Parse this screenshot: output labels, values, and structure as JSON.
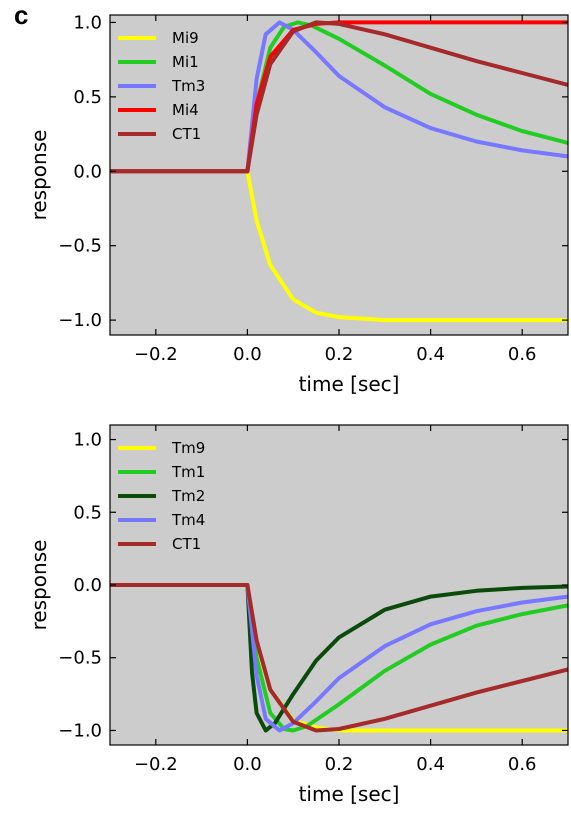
{
  "panel_label": "c",
  "chart_data": [
    {
      "type": "line",
      "title": "",
      "xlabel": "time [sec]",
      "ylabel": "response",
      "xlim": [
        -0.3,
        0.7
      ],
      "ylim": [
        -1.1,
        1.05
      ],
      "xticks": [
        -0.2,
        0.0,
        0.2,
        0.4,
        0.6
      ],
      "xtick_labels": [
        "−0.2",
        "0.0",
        "0.2",
        "0.4",
        "0.6"
      ],
      "yticks": [
        -1.0,
        -0.5,
        0.0,
        0.5,
        1.0
      ],
      "ytick_labels": [
        "−1.0",
        "−0.5",
        "0.0",
        "0.5",
        "1.0"
      ],
      "grid": false,
      "legend_position": "top-left",
      "series": [
        {
          "name": "Mi9",
          "color": "#ffff00",
          "x": [
            -0.3,
            0.0,
            0.02,
            0.05,
            0.1,
            0.15,
            0.2,
            0.3,
            0.4,
            0.5,
            0.6,
            0.7
          ],
          "y": [
            0.0,
            0.0,
            -0.33,
            -0.63,
            -0.86,
            -0.95,
            -0.98,
            -1.0,
            -1.0,
            -1.0,
            -1.0,
            -1.0
          ]
        },
        {
          "name": "Mi1",
          "color": "#22cc22",
          "x": [
            -0.3,
            0.0,
            0.02,
            0.05,
            0.08,
            0.11,
            0.14,
            0.2,
            0.3,
            0.4,
            0.5,
            0.6,
            0.7
          ],
          "y": [
            0.0,
            0.0,
            0.45,
            0.83,
            0.97,
            1.0,
            0.98,
            0.89,
            0.71,
            0.52,
            0.38,
            0.27,
            0.19
          ]
        },
        {
          "name": "Tm3",
          "color": "#7777ff",
          "x": [
            -0.3,
            0.0,
            0.02,
            0.04,
            0.07,
            0.1,
            0.15,
            0.2,
            0.3,
            0.4,
            0.5,
            0.6,
            0.7
          ],
          "y": [
            0.0,
            0.0,
            0.62,
            0.92,
            1.0,
            0.95,
            0.8,
            0.64,
            0.43,
            0.29,
            0.2,
            0.14,
            0.1
          ]
        },
        {
          "name": "Mi4",
          "color": "#ff0000",
          "x": [
            -0.3,
            0.0,
            0.02,
            0.05,
            0.1,
            0.15,
            0.2,
            0.3,
            0.4,
            0.5,
            0.6,
            0.7
          ],
          "y": [
            0.0,
            0.0,
            0.45,
            0.77,
            0.95,
            0.99,
            1.0,
            1.0,
            1.0,
            1.0,
            1.0,
            1.0
          ]
        },
        {
          "name": "CT1",
          "color": "#a52a2a",
          "x": [
            -0.3,
            0.0,
            0.02,
            0.05,
            0.1,
            0.15,
            0.2,
            0.3,
            0.4,
            0.5,
            0.6,
            0.7
          ],
          "y": [
            0.0,
            0.0,
            0.38,
            0.72,
            0.94,
            1.0,
            0.99,
            0.92,
            0.83,
            0.74,
            0.66,
            0.58
          ]
        }
      ]
    },
    {
      "type": "line",
      "title": "",
      "xlabel": "time [sec]",
      "ylabel": "response",
      "xlim": [
        -0.3,
        0.7
      ],
      "ylim": [
        -1.1,
        1.1
      ],
      "xticks": [
        -0.2,
        0.0,
        0.2,
        0.4,
        0.6
      ],
      "xtick_labels": [
        "−0.2",
        "0.0",
        "0.2",
        "0.4",
        "0.6"
      ],
      "yticks": [
        -1.0,
        -0.5,
        0.0,
        0.5,
        1.0
      ],
      "ytick_labels": [
        "−1.0",
        "−0.5",
        "0.0",
        "0.5",
        "1.0"
      ],
      "grid": false,
      "legend_position": "top-left",
      "series": [
        {
          "name": "Tm9",
          "color": "#ffff00",
          "x": [
            -0.3,
            0.0,
            0.02,
            0.05,
            0.1,
            0.15,
            0.2,
            0.3,
            0.4,
            0.5,
            0.6,
            0.7
          ],
          "y": [
            0.0,
            0.0,
            -0.4,
            -0.72,
            -0.93,
            -0.98,
            -1.0,
            -1.0,
            -1.0,
            -1.0,
            -1.0,
            -1.0
          ]
        },
        {
          "name": "Tm1",
          "color": "#22cc22",
          "x": [
            -0.3,
            0.0,
            0.02,
            0.05,
            0.08,
            0.1,
            0.13,
            0.2,
            0.3,
            0.4,
            0.5,
            0.6,
            0.7
          ],
          "y": [
            0.0,
            0.0,
            -0.5,
            -0.88,
            -0.99,
            -1.0,
            -0.97,
            -0.82,
            -0.59,
            -0.41,
            -0.28,
            -0.2,
            -0.14
          ]
        },
        {
          "name": "Tm2",
          "color": "#0a4a0a",
          "x": [
            -0.3,
            0.0,
            0.01,
            0.02,
            0.04,
            0.06,
            0.1,
            0.15,
            0.2,
            0.3,
            0.4,
            0.5,
            0.6,
            0.7
          ],
          "y": [
            0.0,
            0.0,
            -0.6,
            -0.88,
            -1.0,
            -0.95,
            -0.75,
            -0.52,
            -0.36,
            -0.17,
            -0.08,
            -0.04,
            -0.02,
            -0.01
          ]
        },
        {
          "name": "Tm4",
          "color": "#7777ff",
          "x": [
            -0.3,
            0.0,
            0.02,
            0.04,
            0.07,
            0.1,
            0.15,
            0.2,
            0.3,
            0.4,
            0.5,
            0.6,
            0.7
          ],
          "y": [
            0.0,
            0.0,
            -0.62,
            -0.92,
            -1.0,
            -0.95,
            -0.8,
            -0.64,
            -0.42,
            -0.27,
            -0.18,
            -0.12,
            -0.08
          ]
        },
        {
          "name": "CT1",
          "color": "#a52a2a",
          "x": [
            -0.3,
            0.0,
            0.02,
            0.05,
            0.1,
            0.15,
            0.2,
            0.3,
            0.4,
            0.5,
            0.6,
            0.7
          ],
          "y": [
            0.0,
            0.0,
            -0.38,
            -0.72,
            -0.94,
            -1.0,
            -0.99,
            -0.92,
            -0.83,
            -0.74,
            -0.66,
            -0.58
          ]
        }
      ]
    }
  ]
}
